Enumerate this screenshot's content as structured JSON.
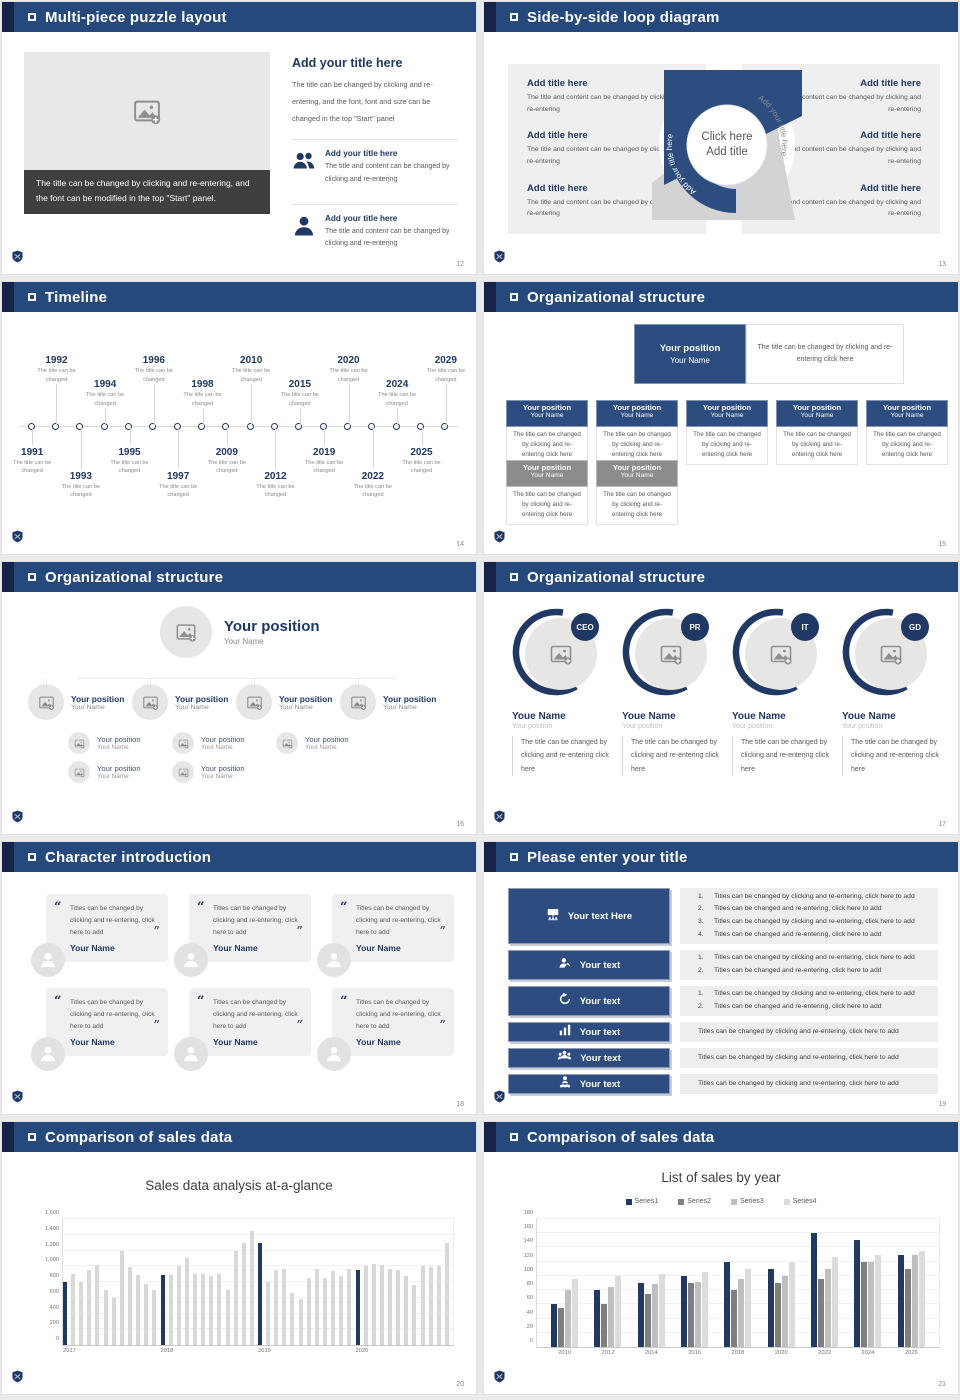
{
  "slides": [
    {
      "header": "Multi-piece puzzle layout",
      "page": "12",
      "caption": "The title can be changed by clicking and re-entering, and the font can be modified in the top \"Start\" panel.",
      "title": "Add your title here",
      "body": "The title can be changed by clicking and re-entering, and the font, font and size can be changed in the top \"Start\" panel",
      "items": [
        {
          "icon": "people-icon",
          "title": "Add your title here",
          "text": "The title and content can be changed by clicking and re-entering"
        },
        {
          "icon": "person-icon",
          "title": "Add your title here",
          "text": "The title and content can be changed by clicking and re-entering"
        }
      ]
    },
    {
      "header": "Side-by-side loop diagram",
      "page": "13",
      "left_items": [
        {
          "title": "Add title here",
          "text": "The title and content can be changed by clicking and re-entering"
        },
        {
          "title": "Add title here",
          "text": "The title and content can be changed by clicking and re-entering"
        },
        {
          "title": "Add title here",
          "text": "The title and content can be changed by clicking and re-entering"
        }
      ],
      "right_items": [
        {
          "title": "Add title here",
          "text": "The title and content can be changed by clicking and re-entering"
        },
        {
          "title": "Add title here",
          "text": "The title and content can be changed by clicking and re-entering"
        },
        {
          "title": "Add title here",
          "text": "The title and content can be changed by clicking and re-entering"
        }
      ],
      "center": {
        "line1": "Click here",
        "line2": "Add title",
        "arc_left": "Add your title here",
        "arc_right": "Add your title here"
      }
    },
    {
      "header": "Timeline",
      "page": "14",
      "caption": "The title can be changed",
      "events": [
        {
          "year": "1991",
          "side": "below",
          "tier": "near"
        },
        {
          "year": "1992",
          "side": "above",
          "tier": "far"
        },
        {
          "year": "1993",
          "side": "below",
          "tier": "far"
        },
        {
          "year": "1994",
          "side": "above",
          "tier": "near"
        },
        {
          "year": "1995",
          "side": "below",
          "tier": "near"
        },
        {
          "year": "1996",
          "side": "above",
          "tier": "far"
        },
        {
          "year": "1997",
          "side": "below",
          "tier": "far"
        },
        {
          "year": "1998",
          "side": "above",
          "tier": "near"
        },
        {
          "year": "2009",
          "side": "below",
          "tier": "near"
        },
        {
          "year": "2010",
          "side": "above",
          "tier": "far"
        },
        {
          "year": "2012",
          "side": "below",
          "tier": "far"
        },
        {
          "year": "2015",
          "side": "above",
          "tier": "near"
        },
        {
          "year": "2019",
          "side": "below",
          "tier": "near"
        },
        {
          "year": "2020",
          "side": "above",
          "tier": "far"
        },
        {
          "year": "2022",
          "side": "below",
          "tier": "far"
        },
        {
          "year": "2024",
          "side": "above",
          "tier": "near"
        },
        {
          "year": "2025",
          "side": "below",
          "tier": "near"
        },
        {
          "year": "2029",
          "side": "above",
          "tier": "far"
        }
      ]
    },
    {
      "header": "Organizational structure",
      "page": "15",
      "root": {
        "title": "Your position",
        "name": "Your Name",
        "note": "The title can be changed by clicking and re-entering click here"
      },
      "card_text": "The title can be changed by clicking and re-entering click here",
      "cards_row1": [
        {
          "title": "Your position",
          "name": "Your Name",
          "variant": "blue"
        },
        {
          "title": "Your position",
          "name": "Your Name",
          "variant": "blue"
        },
        {
          "title": "Your position",
          "name": "Your Name",
          "variant": "blue"
        },
        {
          "title": "Your position",
          "name": "Your Name",
          "variant": "blue"
        },
        {
          "title": "Your position",
          "name": "Your Name",
          "variant": "blue"
        }
      ],
      "cards_row2": [
        {
          "title": "Your position",
          "name": "Your Name",
          "variant": "gray"
        },
        {
          "title": "Your position",
          "name": "Your Name",
          "variant": "gray"
        }
      ]
    },
    {
      "header": "Organizational structure",
      "page": "16",
      "root": {
        "title": "Your position",
        "name": "Your Name"
      },
      "branches": [
        {
          "title": "Your position",
          "name": "Your Name",
          "children": [
            {
              "title": "Your position",
              "name": "Your Name"
            },
            {
              "title": "Your position",
              "name": "Your Name"
            }
          ]
        },
        {
          "title": "Your position",
          "name": "Your Name",
          "children": [
            {
              "title": "Your position",
              "name": "Your Name"
            },
            {
              "title": "Your position",
              "name": "Your Name"
            }
          ]
        },
        {
          "title": "Your position",
          "name": "Your Name",
          "children": [
            {
              "title": "Your position",
              "name": "Your Name"
            }
          ]
        },
        {
          "title": "Your position",
          "name": "Your Name",
          "children": []
        }
      ]
    },
    {
      "header": "Organizational structure",
      "page": "17",
      "members": [
        {
          "badge": "CEO",
          "name": "Youe Name",
          "position": "Your position",
          "text": "The title can be changed by clicking and re-entering click here"
        },
        {
          "badge": "PR",
          "name": "Youe Name",
          "position": "Your position",
          "text": "The title can be changed by clicking and re-entering click here"
        },
        {
          "badge": "IT",
          "name": "Youe Name",
          "position": "Your position",
          "text": "The title can be changed by clicking and re-entering click here"
        },
        {
          "badge": "GD",
          "name": "Youe Name",
          "position": "Your position",
          "text": "The title can be changed by clicking and re-entering click here"
        }
      ]
    },
    {
      "header": "Character introduction",
      "page": "18",
      "cards": [
        {
          "quote": "Titles can be changed by clicking and re-entering, click here to add",
          "name": "Your Name"
        },
        {
          "quote": "Titles can be changed by clicking and re-entering, click here to add",
          "name": "Your Name"
        },
        {
          "quote": "Titles can be changed by clicking and re-entering, click here to add",
          "name": "Your Name"
        },
        {
          "quote": "Titles can be changed by clicking and re-entering, click here to add",
          "name": "Your Name"
        },
        {
          "quote": "Titles can be changed by clicking and re-entering, click here to add",
          "name": "Your Name"
        },
        {
          "quote": "Titles can be changed by clicking and re-entering, click here to add",
          "name": "Your Name"
        }
      ]
    },
    {
      "header": "Please enter your title",
      "page": "19",
      "rows": [
        {
          "icon": "presentation-icon",
          "label": "Your text Here",
          "numbered": true,
          "height": 56,
          "items": [
            "Titles can be changed by clicking and re-entering, click here to add",
            "Titles can be changed and re-entering, click here to add",
            "Titles can be changed by clicking and re-entering, click here to add",
            "Titles can be changed and re-entering, click here to add"
          ]
        },
        {
          "icon": "person-edit-icon",
          "label": "Your text",
          "numbered": true,
          "height": 30,
          "items": [
            "Titles can be changed by clicking and re-entering, click here to add",
            "Titles can be changed and re-entering, click here to add"
          ]
        },
        {
          "icon": "refresh-icon",
          "label": "Your text",
          "numbered": true,
          "height": 30,
          "items": [
            "Titles can be changed by clicking and re-entering, click here to add",
            "Titles can be changed and re-entering, click here to add"
          ]
        },
        {
          "icon": "bar-chart-icon",
          "label": "Your text",
          "numbered": false,
          "height": 20,
          "items": [
            "Titles can be changed by clicking and re-entering, click here to add"
          ]
        },
        {
          "icon": "group-icon",
          "label": "Your text",
          "numbered": false,
          "height": 20,
          "items": [
            "Titles can be changed by clicking and re-entering, click here to add"
          ]
        },
        {
          "icon": "service-icon",
          "label": "Your text",
          "numbered": false,
          "height": 20,
          "items": [
            "Titles can be changed by clicking and re-entering, click here to add"
          ]
        }
      ]
    },
    {
      "header": "Comparison of sales data",
      "page": "20"
    },
    {
      "header": "Comparison of sales data",
      "page": "21"
    }
  ],
  "chart_data": [
    {
      "type": "bar",
      "title": "Sales data analysis at-a-glance",
      "ylim": [
        0,
        1600
      ],
      "ytick_labels": [
        "0",
        "200",
        "400",
        "600",
        "800",
        "1,000",
        "1,200",
        "1,400",
        "1,600"
      ],
      "grid": true,
      "group_labels": [
        "2017",
        "2018",
        "2019",
        "2020"
      ],
      "groups": [
        [
          800,
          900,
          800,
          950,
          1020,
          700,
          600,
          1200,
          985,
          890,
          780,
          700
        ],
        [
          890,
          890,
          1000,
          1100,
          900,
          900,
          880,
          900,
          700,
          1200,
          1290,
          1450
        ],
        [
          1290,
          800,
          955,
          960,
          655,
          580,
          855,
          970,
          855,
          945,
          875,
          970
        ],
        [
          950,
          1000,
          1030,
          1020,
          970,
          955,
          875,
          765,
          1000,
          985,
          1000,
          1290
        ]
      ],
      "bar_color": "#d8d8d8",
      "highlight_color": "#1f3864",
      "highlight_rule": "first bar of each year group"
    },
    {
      "type": "bar",
      "title": "List of sales by year",
      "ylim": [
        0,
        180
      ],
      "ytick_step": 20,
      "grid": true,
      "legend_position": "top",
      "categories": [
        "2010",
        "2012",
        "2014",
        "2016",
        "2018",
        "2020",
        "2022",
        "2024",
        "2026"
      ],
      "series": [
        {
          "name": "Series1",
          "color": "#1f3864",
          "values": [
            60,
            80,
            90,
            100,
            120,
            110,
            160,
            150,
            130
          ]
        },
        {
          "name": "Series2",
          "color": "#7f7f7f",
          "values": [
            55,
            60,
            75,
            90,
            80,
            90,
            95,
            120,
            110
          ]
        },
        {
          "name": "Series3",
          "color": "#bfbfbf",
          "values": [
            80,
            85,
            88,
            92,
            96,
            100,
            110,
            120,
            130
          ]
        },
        {
          "name": "Series4",
          "color": "#dcdcdc",
          "values": [
            95,
            100,
            102,
            105,
            110,
            120,
            127,
            130,
            135
          ]
        }
      ]
    }
  ]
}
